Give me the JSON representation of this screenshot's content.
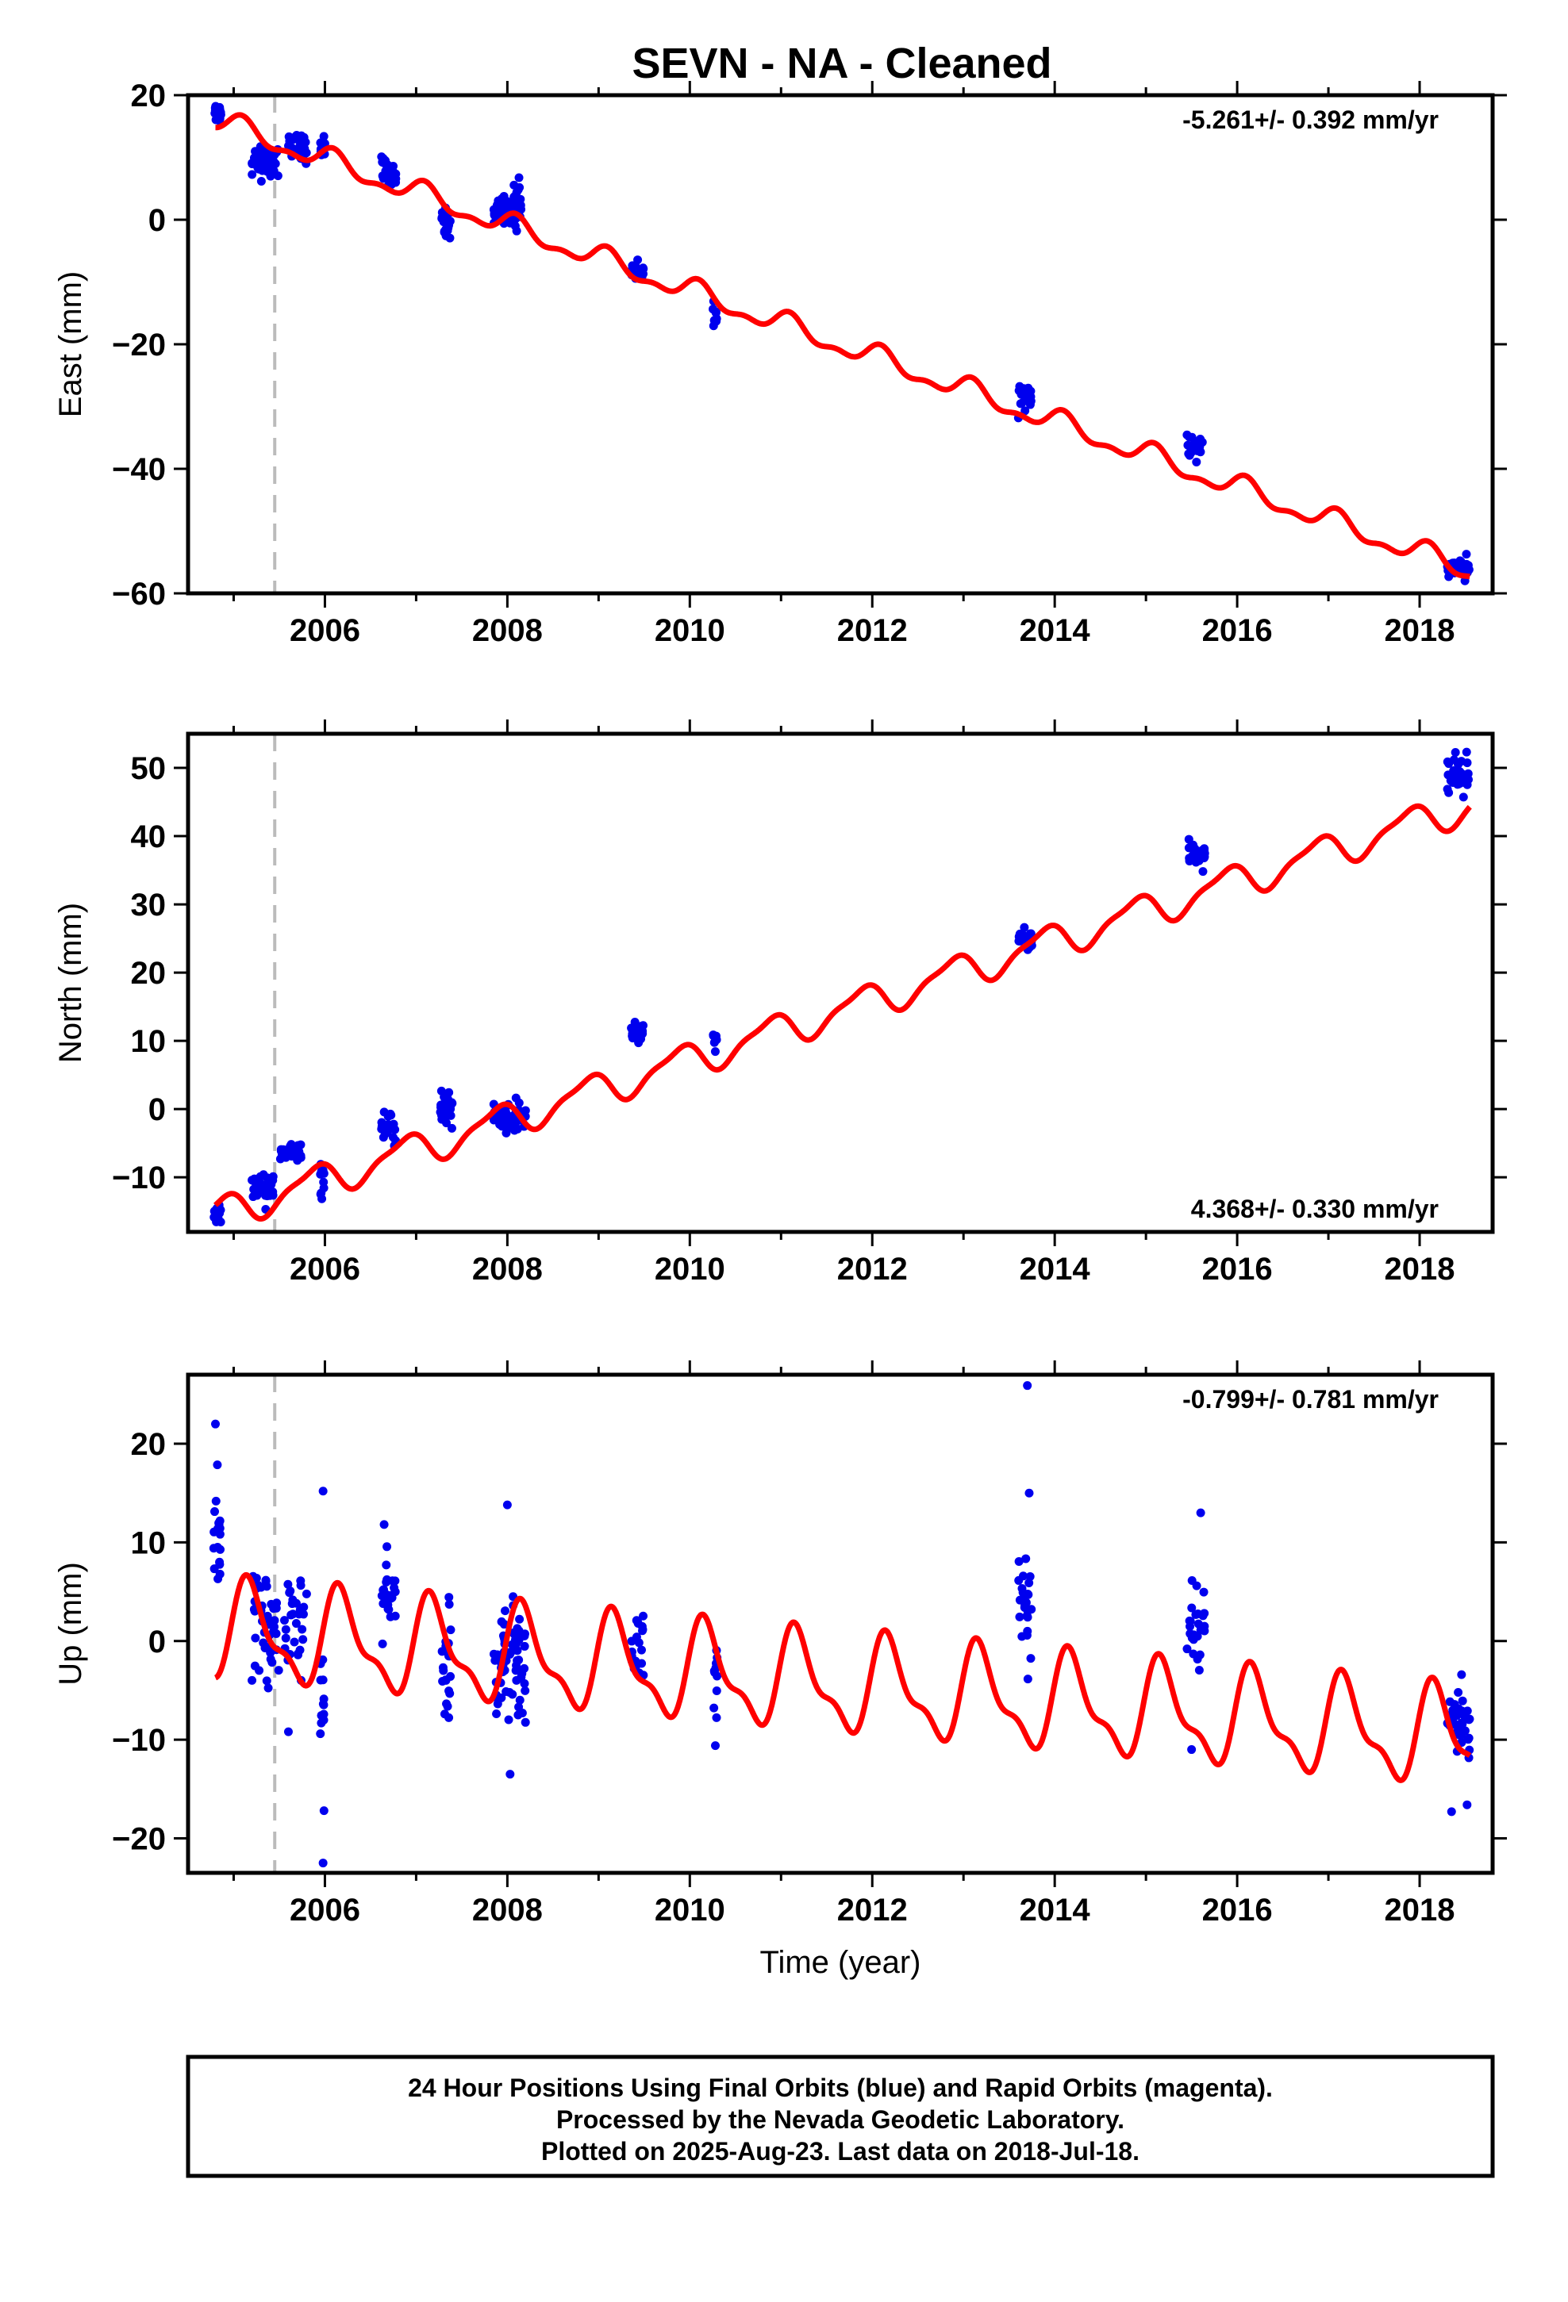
{
  "footer": {
    "lines": [
      "24 Hour Positions Using Final Orbits (blue) and Rapid Orbits (magenta).",
      "Processed by the Nevada Geodetic Laboratory.",
      "Plotted on 2025-Aug-23. Last data on 2018-Jul-18."
    ]
  },
  "colors": {
    "data": "#0000ee",
    "model": "#ff0000",
    "event": "#bbbbbb",
    "frame": "#000000"
  },
  "chart_data": [
    {
      "type": "scatter",
      "title": "SEVN  - NA - Cleaned",
      "ylabel": "East (mm)",
      "xlabel": "",
      "rate": "-5.261+/- 0.392 mm/yr",
      "xlim": [
        2004.5,
        2018.8
      ],
      "ylim": [
        -60,
        20
      ],
      "xticks": [
        2006,
        2008,
        2010,
        2012,
        2014,
        2016,
        2018
      ],
      "yticks": [
        -60,
        -40,
        -20,
        0,
        20
      ],
      "event_line": 2005.45,
      "model": {
        "slope": -5.261,
        "intercept": 15.9,
        "t0": 2004.8,
        "annual_amp": 1.6,
        "annual_phase": 1.0,
        "semi_amp": 0.8,
        "semi_phase": 0.4
      },
      "series": [
        {
          "name": "Final Orbits",
          "clusters": [
            {
              "t0": 2004.78,
              "t1": 2004.86,
              "center": 17.2,
              "spread": 1.5,
              "n": 18
            },
            {
              "t0": 2005.2,
              "t1": 2005.5,
              "center": 9.5,
              "spread": 2.5,
              "n": 40
            },
            {
              "t0": 2005.55,
              "t1": 2005.8,
              "center": 11.5,
              "spread": 2.0,
              "n": 30
            },
            {
              "t0": 2005.95,
              "t1": 2006.0,
              "center": 12.0,
              "spread": 2.0,
              "n": 12
            },
            {
              "t0": 2006.62,
              "t1": 2006.78,
              "center": 7.2,
              "spread": 2.5,
              "n": 25
            },
            {
              "t0": 2007.28,
              "t1": 2007.38,
              "center": -0.5,
              "spread": 2.0,
              "n": 18
            },
            {
              "t0": 2007.85,
              "t1": 2008.15,
              "center": 2.0,
              "spread": 3.0,
              "n": 60
            },
            {
              "t0": 2009.35,
              "t1": 2009.5,
              "center": -8.0,
              "spread": 1.5,
              "n": 18
            },
            {
              "t0": 2010.25,
              "t1": 2010.3,
              "center": -16.0,
              "spread": 2.0,
              "n": 8
            },
            {
              "t0": 2013.6,
              "t1": 2013.75,
              "center": -28.0,
              "spread": 2.0,
              "n": 20
            },
            {
              "t0": 2015.45,
              "t1": 2015.65,
              "center": -36.8,
              "spread": 1.5,
              "n": 25
            },
            {
              "t0": 2018.3,
              "t1": 2018.55,
              "center": -56.0,
              "spread": 1.5,
              "n": 35
            }
          ]
        }
      ]
    },
    {
      "type": "scatter",
      "title": "",
      "ylabel": "North (mm)",
      "xlabel": "",
      "rate": "4.368+/- 0.330 mm/yr",
      "xlim": [
        2004.5,
        2018.8
      ],
      "ylim": [
        -18,
        55
      ],
      "xticks": [
        2006,
        2008,
        2010,
        2012,
        2014,
        2016,
        2018
      ],
      "yticks": [
        -10,
        0,
        10,
        20,
        30,
        40,
        50
      ],
      "event_line": 2005.45,
      "model": {
        "slope": 4.368,
        "intercept": -15.5,
        "t0": 2004.8,
        "annual_amp": 2.3,
        "annual_phase": 2.4,
        "semi_amp": 0.7,
        "semi_phase": 1.2
      },
      "series": [
        {
          "name": "Final Orbits",
          "clusters": [
            {
              "t0": 2004.78,
              "t1": 2004.86,
              "center": -15.5,
              "spread": 1.5,
              "n": 14
            },
            {
              "t0": 2005.2,
              "t1": 2005.45,
              "center": -11.5,
              "spread": 2.0,
              "n": 35
            },
            {
              "t0": 2005.5,
              "t1": 2005.75,
              "center": -6.5,
              "spread": 1.5,
              "n": 25
            },
            {
              "t0": 2005.95,
              "t1": 2006.0,
              "center": -10.5,
              "spread": 2.0,
              "n": 10
            },
            {
              "t0": 2006.62,
              "t1": 2006.78,
              "center": -3.0,
              "spread": 2.0,
              "n": 25
            },
            {
              "t0": 2007.25,
              "t1": 2007.4,
              "center": 0.0,
              "spread": 2.0,
              "n": 25
            },
            {
              "t0": 2007.85,
              "t1": 2008.2,
              "center": -1.0,
              "spread": 2.5,
              "n": 60
            },
            {
              "t0": 2009.35,
              "t1": 2009.5,
              "center": 11.0,
              "spread": 1.5,
              "n": 18
            },
            {
              "t0": 2010.25,
              "t1": 2010.3,
              "center": 10.0,
              "spread": 1.0,
              "n": 8
            },
            {
              "t0": 2013.6,
              "t1": 2013.75,
              "center": 25.0,
              "spread": 2.0,
              "n": 20
            },
            {
              "t0": 2015.45,
              "t1": 2015.65,
              "center": 37.0,
              "spread": 1.5,
              "n": 25
            },
            {
              "t0": 2018.3,
              "t1": 2018.55,
              "center": 49.0,
              "spread": 2.5,
              "n": 35
            }
          ]
        }
      ]
    },
    {
      "type": "scatter",
      "title": "",
      "ylabel": "Up (mm)",
      "xlabel": "Time (year)",
      "rate": "-0.799+/- 0.781 mm/yr",
      "xlim": [
        2004.5,
        2018.8
      ],
      "ylim": [
        -23.5,
        27
      ],
      "xticks": [
        2006,
        2008,
        2010,
        2012,
        2014,
        2016,
        2018
      ],
      "yticks": [
        -20,
        -10,
        0,
        10,
        20
      ],
      "event_line": 2005.45,
      "model": {
        "slope": -0.799,
        "intercept": 1.0,
        "t0": 2004.8,
        "annual_amp": 4.5,
        "annual_phase": 0.4,
        "semi_amp": 1.8,
        "semi_phase": 0.2
      },
      "series": [
        {
          "name": "Final Orbits",
          "clusters": [
            {
              "t0": 2004.78,
              "t1": 2004.86,
              "center": 11.0,
              "spread": 5.0,
              "n": 18
            },
            {
              "t0": 2005.2,
              "t1": 2005.5,
              "center": 1.5,
              "spread": 5.5,
              "n": 45
            },
            {
              "t0": 2005.55,
              "t1": 2005.8,
              "center": 2.0,
              "spread": 4.5,
              "n": 30
            },
            {
              "t0": 2005.95,
              "t1": 2006.0,
              "center": -6.0,
              "spread": 6.5,
              "n": 12
            },
            {
              "t0": 2006.62,
              "t1": 2006.78,
              "center": 4.0,
              "spread": 4.5,
              "n": 25
            },
            {
              "t0": 2007.28,
              "t1": 2007.38,
              "center": -2.0,
              "spread": 5.0,
              "n": 22
            },
            {
              "t0": 2007.85,
              "t1": 2008.2,
              "center": -2.5,
              "spread": 5.0,
              "n": 70
            },
            {
              "t0": 2009.35,
              "t1": 2009.5,
              "center": 0.0,
              "spread": 5.0,
              "n": 20
            },
            {
              "t0": 2010.25,
              "t1": 2010.3,
              "center": -3.5,
              "spread": 4.5,
              "n": 10
            },
            {
              "t0": 2013.6,
              "t1": 2013.75,
              "center": 4.0,
              "spread": 5.0,
              "n": 25
            },
            {
              "t0": 2015.45,
              "t1": 2015.65,
              "center": 1.5,
              "spread": 4.5,
              "n": 25
            },
            {
              "t0": 2018.3,
              "t1": 2018.55,
              "center": -8.0,
              "spread": 3.5,
              "n": 35
            }
          ]
        },
        {
          "name": "Outliers",
          "points": [
            {
              "x": 2004.8,
              "y": 22.0
            },
            {
              "x": 2005.98,
              "y": 15.2
            },
            {
              "x": 2005.98,
              "y": -22.5
            },
            {
              "x": 2005.99,
              "y": -17.2
            },
            {
              "x": 2008.0,
              "y": 13.8
            },
            {
              "x": 2008.03,
              "y": -13.5
            },
            {
              "x": 2013.7,
              "y": 25.9
            },
            {
              "x": 2013.72,
              "y": 15.0
            },
            {
              "x": 2015.5,
              "y": -11.0
            },
            {
              "x": 2015.6,
              "y": 13.0
            },
            {
              "x": 2010.28,
              "y": -10.6
            },
            {
              "x": 2018.35,
              "y": -17.3
            },
            {
              "x": 2018.52,
              "y": -16.6
            },
            {
              "x": 2005.6,
              "y": -9.2
            }
          ]
        }
      ]
    }
  ]
}
